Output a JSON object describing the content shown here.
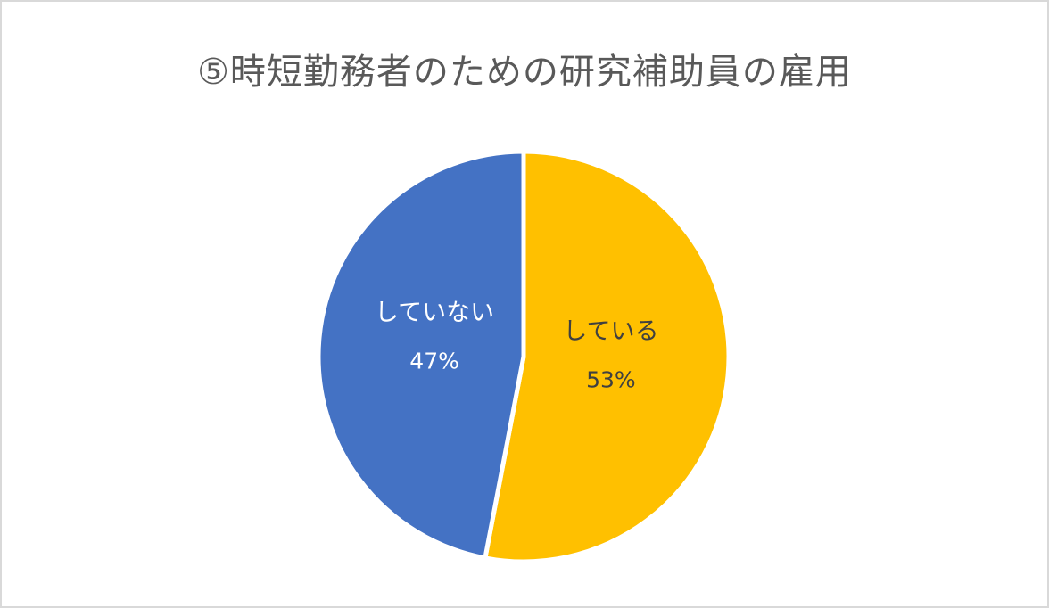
{
  "chart_data": {
    "type": "pie",
    "title": "⑤時短勤務者のための研究補助員の雇用",
    "categories": [
      "している",
      "していない"
    ],
    "values": [
      53,
      47
    ],
    "value_labels": [
      "53%",
      "47%"
    ],
    "colors": [
      "#FFC000",
      "#4472C4"
    ],
    "label_colors": [
      "#404040",
      "#ffffff"
    ],
    "legend": "none",
    "start_angle": "12 o'clock, clockwise"
  }
}
